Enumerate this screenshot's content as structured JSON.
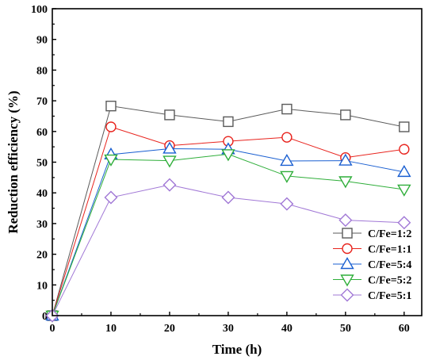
{
  "chart_data": {
    "type": "line",
    "title": "",
    "xlabel": "Time (h)",
    "ylabel": "Reduction efficiency (%)",
    "xlim": [
      0,
      63
    ],
    "ylim": [
      0,
      100
    ],
    "xticks": [
      0,
      10,
      20,
      30,
      40,
      50,
      60
    ],
    "yticks": [
      0,
      10,
      20,
      30,
      40,
      50,
      60,
      70,
      80,
      90,
      100
    ],
    "x": [
      0,
      10,
      20,
      30,
      40,
      50,
      60
    ],
    "legend_position": "bottom-right",
    "grid": false,
    "series": [
      {
        "name": "C/Fe=1:2",
        "marker": "square",
        "color": "#5a5a5a",
        "values": [
          0,
          68.3,
          65.4,
          63.2,
          67.3,
          65.4,
          61.5
        ]
      },
      {
        "name": "C/Fe=1:1",
        "marker": "circle",
        "color": "#e8231d",
        "values": [
          0,
          61.5,
          55.4,
          56.8,
          58.1,
          51.5,
          54.2
        ]
      },
      {
        "name": "C/Fe=5:4",
        "marker": "triangle-up",
        "color": "#1a5fd1",
        "values": [
          0,
          52.5,
          54.4,
          54.2,
          50.4,
          50.5,
          46.8
        ]
      },
      {
        "name": "C/Fe=5:2",
        "marker": "triangle-down",
        "color": "#2fae3a",
        "values": [
          0,
          50.9,
          50.5,
          52.6,
          45.5,
          43.8,
          41.1
        ]
      },
      {
        "name": "C/Fe=5:1",
        "marker": "diamond",
        "color": "#a178d6",
        "values": [
          0,
          38.5,
          42.6,
          38.5,
          36.4,
          31.1,
          30.3
        ]
      }
    ]
  }
}
